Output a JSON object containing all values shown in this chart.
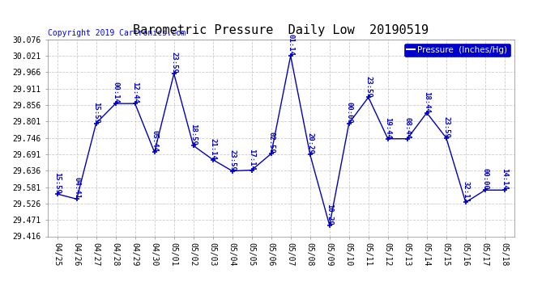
{
  "title": "Barometric Pressure  Daily Low  20190519",
  "copyright": "Copyright 2019 Cartronics.com",
  "legend_label": "Pressure  (Inches/Hg)",
  "background_color": "#ffffff",
  "plot_background_color": "#ffffff",
  "line_color": "#0000bb",
  "marker_color": "#0000bb",
  "annotation_color": "#0000bb",
  "grid_color": "#cccccc",
  "x_labels": [
    "04/25",
    "04/26",
    "04/27",
    "04/28",
    "04/29",
    "04/30",
    "05/01",
    "05/02",
    "05/03",
    "05/04",
    "05/05",
    "05/06",
    "05/07",
    "05/08",
    "05/09",
    "05/10",
    "05/11",
    "05/12",
    "05/13",
    "05/14",
    "05/15",
    "05/16",
    "05/17",
    "05/18"
  ],
  "x_indices": [
    0,
    1,
    2,
    3,
    4,
    5,
    6,
    7,
    8,
    9,
    10,
    11,
    12,
    13,
    14,
    15,
    16,
    17,
    18,
    19,
    20,
    21,
    22,
    23
  ],
  "y_values": [
    29.558,
    29.541,
    29.795,
    29.861,
    29.861,
    29.698,
    29.961,
    29.72,
    29.673,
    29.635,
    29.638,
    29.693,
    30.021,
    29.69,
    29.453,
    29.795,
    29.882,
    29.743,
    29.743,
    29.83,
    29.746,
    29.53,
    29.571,
    29.571
  ],
  "annotations": [
    "15:59",
    "04:41",
    "15:59",
    "00:14",
    "12:44",
    "05:44",
    "23:59",
    "18:59",
    "21:14",
    "23:59",
    "17:14",
    "02:59",
    "01:14",
    "20:29",
    "10:29",
    "00:00",
    "23:59",
    "19:44",
    "08:44",
    "18:44",
    "23:59",
    "32:11",
    "00:00",
    "14:14"
  ],
  "ylim": [
    29.416,
    30.076
  ],
  "yticks": [
    29.416,
    29.471,
    29.526,
    29.581,
    29.636,
    29.691,
    29.746,
    29.801,
    29.856,
    29.911,
    29.966,
    30.021,
    30.076
  ],
  "title_fontsize": 11,
  "tick_fontsize": 7,
  "annotation_fontsize": 6.5,
  "copyright_fontsize": 7,
  "legend_fontsize": 7.5
}
